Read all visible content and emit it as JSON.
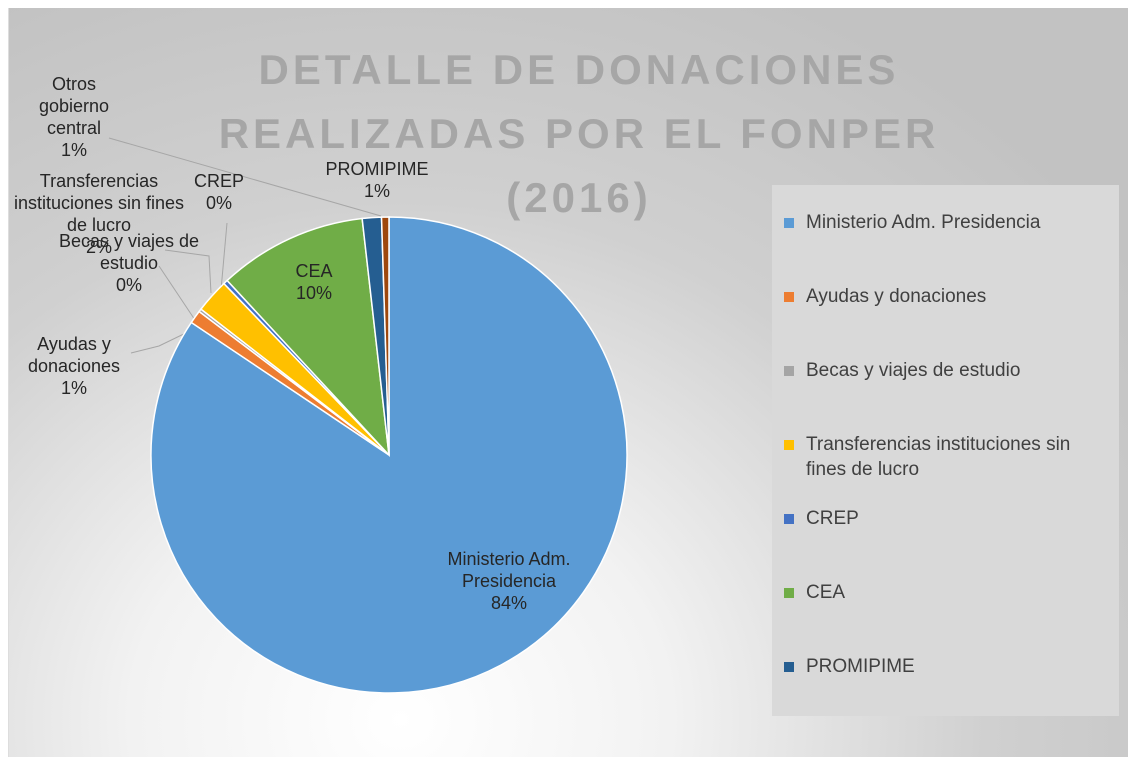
{
  "chart_data": {
    "type": "pie",
    "title": "DETALLE DE DONACIONES REALIZADAS POR EL FONPER (2016)",
    "categories": [
      "Ministerio Adm. Presidencia",
      "Ayudas  y donaciones",
      "Becas  y viajes de estudio",
      "Transferencias  instituciones sin fines de lucro",
      "CREP",
      "CEA",
      "PROMIPIME",
      "Otros gobierno central"
    ],
    "values": [
      84.4,
      0.9,
      0.2,
      2.3,
      0.3,
      10.1,
      1.3,
      0.5
    ],
    "value_labels": [
      "84%",
      "1%",
      "0%",
      "2%",
      "0%",
      "10%",
      "1%",
      "1%"
    ],
    "colors": [
      "#5b9bd5",
      "#ed7d31",
      "#a5a5a5",
      "#ffc000",
      "#4472c4",
      "#70ad47",
      "#255e91",
      "#9e480e"
    ],
    "legend": "right"
  }
}
